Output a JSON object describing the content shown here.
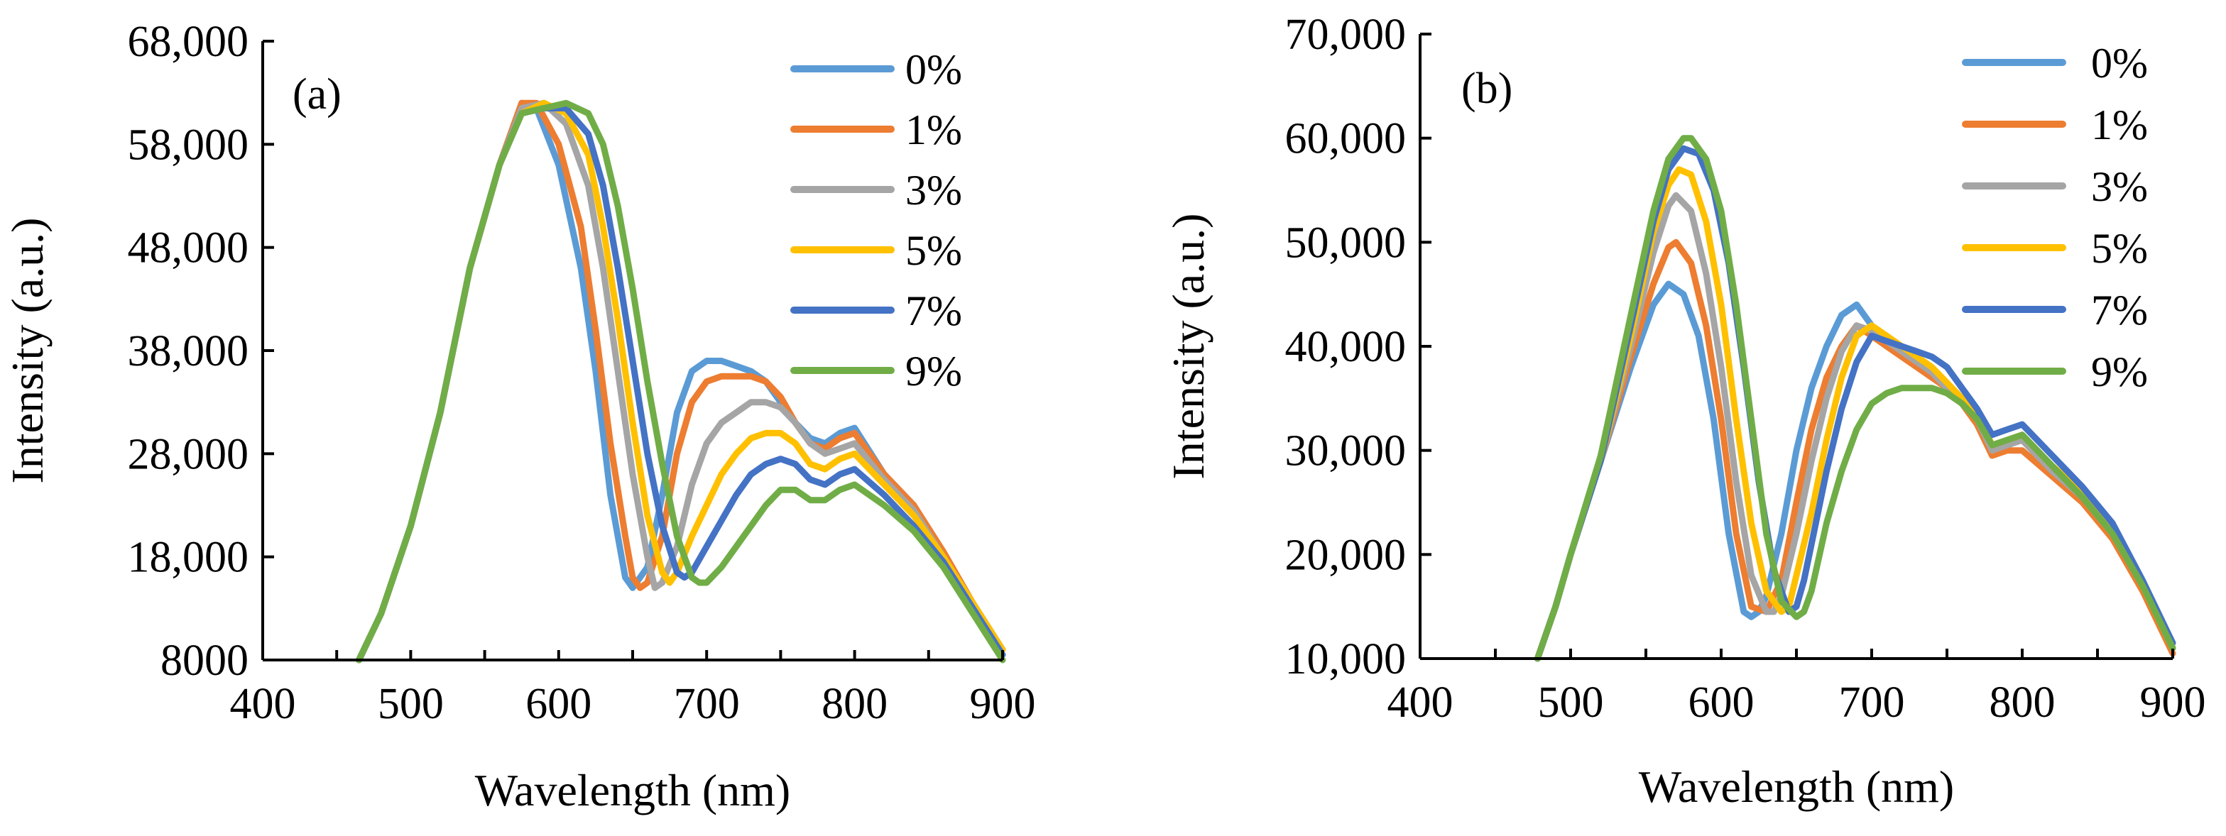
{
  "chart_data": [
    {
      "type": "line",
      "panel_label": "(a)",
      "xlabel": "Wavelength (nm)",
      "ylabel": "Intensity (a.u.)",
      "xlim": [
        400,
        900
      ],
      "ylim": [
        8000,
        68000
      ],
      "x_ticks": [
        400,
        500,
        600,
        700,
        800,
        900
      ],
      "x_tick_labels": [
        "400",
        "500",
        "600",
        "700",
        "800",
        "900"
      ],
      "y_ticks": [
        8000,
        18000,
        28000,
        38000,
        48000,
        58000,
        68000
      ],
      "y_tick_labels": [
        "8000",
        "18,000",
        "28,000",
        "38,000",
        "48,000",
        "58,000",
        "68,000"
      ],
      "legend": "top-right",
      "series": [
        {
          "name": "0%",
          "color": "#5B9BD5",
          "x": [
            465,
            480,
            500,
            520,
            540,
            560,
            575,
            585,
            600,
            615,
            625,
            635,
            645,
            650,
            660,
            670,
            680,
            690,
            700,
            710,
            720,
            730,
            740,
            750,
            760,
            770,
            780,
            790,
            800,
            820,
            840,
            860,
            880,
            900
          ],
          "y": [
            8000,
            12500,
            21000,
            32000,
            46000,
            56000,
            62000,
            61500,
            56000,
            46000,
            36000,
            24000,
            16000,
            15000,
            17000,
            24000,
            32000,
            36000,
            37000,
            37000,
            36500,
            36000,
            35000,
            33000,
            31000,
            29500,
            29000,
            30000,
            30500,
            26000,
            23000,
            18000,
            13500,
            9000
          ]
        },
        {
          "name": "1%",
          "color": "#ED7D31",
          "x": [
            465,
            480,
            500,
            520,
            540,
            560,
            575,
            585,
            600,
            615,
            625,
            635,
            645,
            650,
            655,
            660,
            670,
            680,
            690,
            700,
            710,
            720,
            730,
            740,
            750,
            760,
            770,
            780,
            790,
            800,
            820,
            840,
            860,
            880,
            900
          ],
          "y": [
            8000,
            12500,
            21000,
            32000,
            46000,
            56000,
            62000,
            62000,
            58000,
            50000,
            40000,
            29000,
            20000,
            16000,
            15000,
            15500,
            20000,
            28000,
            33000,
            35000,
            35500,
            35500,
            35500,
            35000,
            33500,
            31000,
            29000,
            28500,
            29500,
            30000,
            26000,
            23000,
            18500,
            13500,
            9000
          ]
        },
        {
          "name": "3%",
          "color": "#A5A5A5",
          "x": [
            465,
            480,
            500,
            520,
            540,
            560,
            575,
            590,
            605,
            620,
            630,
            640,
            650,
            660,
            665,
            670,
            680,
            690,
            700,
            710,
            720,
            730,
            740,
            750,
            760,
            770,
            780,
            790,
            800,
            820,
            840,
            860,
            880,
            900
          ],
          "y": [
            8000,
            12500,
            21000,
            32000,
            46000,
            56000,
            61500,
            62000,
            60000,
            54000,
            46000,
            36000,
            26000,
            18000,
            15000,
            15500,
            19000,
            25000,
            29000,
            31000,
            32000,
            33000,
            33000,
            32500,
            31000,
            29000,
            28000,
            28500,
            29000,
            25500,
            22500,
            18000,
            13500,
            9000
          ]
        },
        {
          "name": "5%",
          "color": "#FFC000",
          "x": [
            465,
            480,
            500,
            520,
            540,
            560,
            575,
            590,
            605,
            620,
            630,
            640,
            650,
            660,
            670,
            675,
            680,
            690,
            700,
            710,
            720,
            730,
            740,
            750,
            760,
            770,
            780,
            790,
            800,
            820,
            840,
            860,
            880,
            900
          ],
          "y": [
            8000,
            12500,
            21000,
            32000,
            46000,
            56000,
            61000,
            62000,
            61000,
            57000,
            50000,
            41000,
            31000,
            22000,
            16500,
            15500,
            16500,
            20000,
            23000,
            26000,
            28000,
            29500,
            30000,
            30000,
            29000,
            27000,
            26500,
            27500,
            28000,
            25000,
            22000,
            18000,
            13500,
            9000
          ]
        },
        {
          "name": "7%",
          "color": "#4472C4",
          "x": [
            465,
            480,
            500,
            520,
            540,
            560,
            575,
            590,
            605,
            620,
            630,
            640,
            650,
            660,
            670,
            680,
            685,
            690,
            700,
            710,
            720,
            730,
            740,
            750,
            760,
            770,
            780,
            790,
            800,
            820,
            840,
            860,
            880,
            900
          ],
          "y": [
            8000,
            12500,
            21000,
            32000,
            46000,
            56000,
            61000,
            61500,
            61500,
            59000,
            54000,
            46000,
            37000,
            28000,
            21000,
            16500,
            16000,
            16500,
            19000,
            21500,
            24000,
            26000,
            27000,
            27500,
            27000,
            25500,
            25000,
            26000,
            26500,
            24000,
            21000,
            17500,
            13000,
            8500
          ]
        },
        {
          "name": "9%",
          "color": "#70AD47",
          "x": [
            465,
            480,
            500,
            520,
            540,
            560,
            575,
            590,
            605,
            620,
            630,
            640,
            650,
            660,
            670,
            680,
            690,
            695,
            700,
            710,
            720,
            730,
            740,
            750,
            760,
            770,
            780,
            790,
            800,
            820,
            840,
            860,
            880,
            900
          ],
          "y": [
            8000,
            12500,
            21000,
            32000,
            46000,
            56000,
            61000,
            61500,
            62000,
            61000,
            58000,
            52000,
            44000,
            35000,
            27000,
            20000,
            16000,
            15500,
            15500,
            17000,
            19000,
            21000,
            23000,
            24500,
            24500,
            23500,
            23500,
            24500,
            25000,
            23000,
            20500,
            17000,
            12500,
            8000
          ]
        }
      ]
    },
    {
      "type": "line",
      "panel_label": "(b)",
      "xlabel": "Wavelength (nm)",
      "ylabel": "Intensity (a.u.)",
      "xlim": [
        400,
        900
      ],
      "ylim": [
        10000,
        70000
      ],
      "x_ticks": [
        400,
        500,
        600,
        700,
        800,
        900
      ],
      "x_tick_labels": [
        "400",
        "500",
        "600",
        "700",
        "800",
        "900"
      ],
      "y_ticks": [
        10000,
        20000,
        30000,
        40000,
        50000,
        60000,
        70000
      ],
      "y_tick_labels": [
        "10,000",
        "20,000",
        "30,000",
        "40,000",
        "50,000",
        "60,000",
        "70,000"
      ],
      "legend": "top-right",
      "series": [
        {
          "name": "0%",
          "color": "#5B9BD5",
          "x": [
            478,
            490,
            500,
            520,
            540,
            555,
            565,
            575,
            585,
            595,
            605,
            615,
            620,
            625,
            630,
            640,
            650,
            660,
            670,
            680,
            690,
            700,
            710,
            720,
            730,
            740,
            750,
            760,
            770,
            780,
            790,
            800,
            820,
            840,
            860,
            880,
            900
          ],
          "y": [
            10000,
            15000,
            20000,
            29000,
            38000,
            44000,
            46000,
            45000,
            41000,
            33000,
            22000,
            14500,
            14000,
            14500,
            16000,
            22000,
            30000,
            36000,
            40000,
            43000,
            44000,
            42000,
            40500,
            39500,
            38500,
            37500,
            36000,
            34500,
            33000,
            30000,
            30500,
            31000,
            28000,
            25500,
            22000,
            17000,
            11000
          ]
        },
        {
          "name": "1%",
          "color": "#ED7D31",
          "x": [
            478,
            490,
            500,
            520,
            540,
            555,
            565,
            570,
            580,
            590,
            600,
            610,
            620,
            630,
            640,
            650,
            660,
            670,
            680,
            690,
            700,
            710,
            720,
            730,
            740,
            750,
            760,
            770,
            780,
            790,
            800,
            820,
            840,
            860,
            880,
            900
          ],
          "y": [
            10000,
            15000,
            20000,
            29000,
            39000,
            46000,
            49500,
            50000,
            48000,
            42000,
            33000,
            22000,
            15000,
            14500,
            17500,
            25000,
            32000,
            37000,
            40000,
            42000,
            41000,
            40000,
            39000,
            38000,
            37000,
            36000,
            34500,
            32500,
            29500,
            30000,
            30000,
            27500,
            25000,
            21500,
            16500,
            10500
          ]
        },
        {
          "name": "3%",
          "color": "#A5A5A5",
          "x": [
            478,
            490,
            500,
            520,
            540,
            555,
            565,
            570,
            580,
            590,
            600,
            610,
            620,
            630,
            635,
            640,
            650,
            660,
            670,
            680,
            690,
            700,
            710,
            720,
            730,
            740,
            750,
            760,
            770,
            780,
            790,
            800,
            820,
            840,
            860,
            880,
            900
          ],
          "y": [
            10000,
            15000,
            20000,
            29000,
            40000,
            49000,
            53500,
            54500,
            53000,
            47000,
            38000,
            27000,
            18000,
            14500,
            14500,
            16000,
            22000,
            29000,
            35000,
            39500,
            42000,
            41500,
            40500,
            39500,
            38500,
            37500,
            36000,
            34500,
            33000,
            30000,
            30500,
            31000,
            28000,
            25500,
            22000,
            17000,
            11000
          ]
        },
        {
          "name": "5%",
          "color": "#FFC000",
          "x": [
            478,
            490,
            500,
            520,
            540,
            555,
            565,
            572,
            580,
            590,
            600,
            610,
            620,
            630,
            640,
            645,
            650,
            660,
            670,
            680,
            690,
            700,
            710,
            720,
            730,
            740,
            750,
            760,
            770,
            780,
            790,
            800,
            820,
            840,
            860,
            880,
            900
          ],
          "y": [
            10000,
            15000,
            20000,
            29000,
            41000,
            51000,
            55500,
            57000,
            56500,
            52000,
            44000,
            33000,
            23000,
            16500,
            14500,
            15000,
            18000,
            24000,
            31000,
            37000,
            41000,
            42000,
            41000,
            40000,
            39000,
            38000,
            36500,
            35000,
            33500,
            30500,
            31000,
            31500,
            28500,
            26000,
            22500,
            17000,
            11000
          ]
        },
        {
          "name": "7%",
          "color": "#4472C4",
          "x": [
            478,
            490,
            500,
            520,
            540,
            555,
            565,
            575,
            585,
            595,
            605,
            615,
            625,
            635,
            645,
            650,
            655,
            660,
            670,
            680,
            690,
            700,
            710,
            720,
            730,
            740,
            750,
            760,
            770,
            780,
            790,
            800,
            820,
            840,
            860,
            880,
            900
          ],
          "y": [
            10000,
            15000,
            20000,
            29000,
            42000,
            52000,
            57000,
            59000,
            58500,
            55000,
            48000,
            38000,
            27000,
            18500,
            14500,
            15000,
            17500,
            21000,
            28000,
            34000,
            38500,
            41000,
            40500,
            40000,
            39500,
            39000,
            38000,
            36000,
            34000,
            31500,
            32000,
            32500,
            29500,
            26500,
            23000,
            17500,
            11500
          ]
        },
        {
          "name": "9%",
          "color": "#70AD47",
          "x": [
            478,
            490,
            500,
            520,
            540,
            555,
            565,
            575,
            580,
            590,
            600,
            610,
            620,
            630,
            640,
            650,
            655,
            660,
            670,
            680,
            690,
            700,
            710,
            720,
            730,
            740,
            750,
            760,
            770,
            780,
            790,
            800,
            820,
            840,
            860,
            880,
            900
          ],
          "y": [
            10000,
            15000,
            20000,
            29500,
            43000,
            53000,
            58000,
            60000,
            60000,
            58000,
            53000,
            44000,
            33000,
            22000,
            15500,
            14000,
            14500,
            16500,
            23000,
            28000,
            32000,
            34500,
            35500,
            36000,
            36000,
            36000,
            35500,
            34500,
            33000,
            30500,
            31000,
            31500,
            28500,
            25500,
            22000,
            17000,
            11000
          ]
        }
      ]
    }
  ]
}
